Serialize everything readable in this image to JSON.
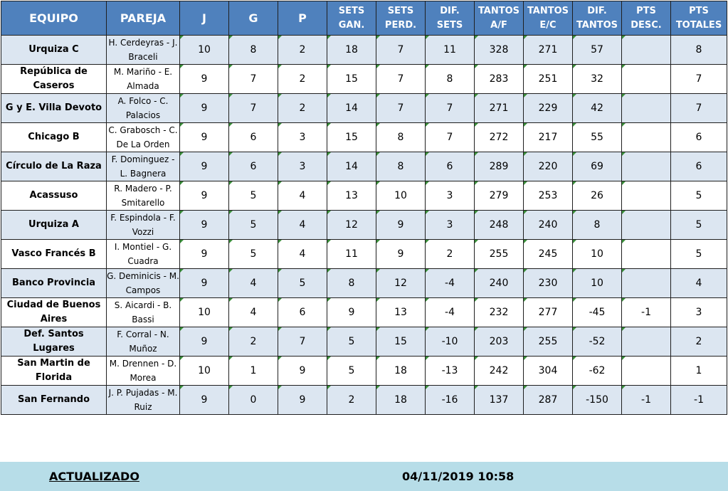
{
  "headers": [
    {
      "key": "equipo",
      "label": "EQUIPO"
    },
    {
      "key": "pareja",
      "label": "PAREJA"
    },
    {
      "key": "j",
      "label": "J"
    },
    {
      "key": "g",
      "label": "G"
    },
    {
      "key": "p",
      "label": "P"
    },
    {
      "key": "sets_gan",
      "label": "SETS GAN."
    },
    {
      "key": "sets_perd",
      "label": "SETS PERD."
    },
    {
      "key": "dif_sets",
      "label": "DIF. SETS"
    },
    {
      "key": "tantos_af",
      "label": "TANTOS A/F"
    },
    {
      "key": "tantos_ec",
      "label": "TANTOS E/C"
    },
    {
      "key": "dif_tantos",
      "label": "DIF. TANTOS"
    },
    {
      "key": "pts_desc",
      "label": "PTS DESC."
    },
    {
      "key": "pts_totales",
      "label": "PTS TOTALES"
    }
  ],
  "rows": [
    {
      "equipo": "Urquiza C",
      "pareja": "H. Cerdeyras - J. Braceli",
      "j": "10",
      "g": "8",
      "p": "2",
      "sets_gan": "18",
      "sets_perd": "7",
      "dif_sets": "11",
      "tantos_af": "328",
      "tantos_ec": "271",
      "dif_tantos": "57",
      "pts_desc": "",
      "pts_totales": "8"
    },
    {
      "equipo": "República de Caseros",
      "pareja": "M. Mariño - E. Almada",
      "j": "9",
      "g": "7",
      "p": "2",
      "sets_gan": "15",
      "sets_perd": "7",
      "dif_sets": "8",
      "tantos_af": "283",
      "tantos_ec": "251",
      "dif_tantos": "32",
      "pts_desc": "",
      "pts_totales": "7"
    },
    {
      "equipo": "G y E. Villa Devoto",
      "pareja": "A. Folco - C. Palacios",
      "j": "9",
      "g": "7",
      "p": "2",
      "sets_gan": "14",
      "sets_perd": "7",
      "dif_sets": "7",
      "tantos_af": "271",
      "tantos_ec": "229",
      "dif_tantos": "42",
      "pts_desc": "",
      "pts_totales": "7"
    },
    {
      "equipo": "Chicago B",
      "pareja": "C. Grabosch - C. De La Orden",
      "j": "9",
      "g": "6",
      "p": "3",
      "sets_gan": "15",
      "sets_perd": "8",
      "dif_sets": "7",
      "tantos_af": "272",
      "tantos_ec": "217",
      "dif_tantos": "55",
      "pts_desc": "",
      "pts_totales": "6"
    },
    {
      "equipo": "Círculo de La Raza",
      "pareja": "F. Dominguez - L. Bagnera",
      "j": "9",
      "g": "6",
      "p": "3",
      "sets_gan": "14",
      "sets_perd": "8",
      "dif_sets": "6",
      "tantos_af": "289",
      "tantos_ec": "220",
      "dif_tantos": "69",
      "pts_desc": "",
      "pts_totales": "6"
    },
    {
      "equipo": "Acassuso",
      "pareja": "R. Madero - P. Smitarello",
      "j": "9",
      "g": "5",
      "p": "4",
      "sets_gan": "13",
      "sets_perd": "10",
      "dif_sets": "3",
      "tantos_af": "279",
      "tantos_ec": "253",
      "dif_tantos": "26",
      "pts_desc": "",
      "pts_totales": "5"
    },
    {
      "equipo": "Urquiza A",
      "pareja": "F. Espindola - F. Vozzi",
      "j": "9",
      "g": "5",
      "p": "4",
      "sets_gan": "12",
      "sets_perd": "9",
      "dif_sets": "3",
      "tantos_af": "248",
      "tantos_ec": "240",
      "dif_tantos": "8",
      "pts_desc": "",
      "pts_totales": "5"
    },
    {
      "equipo": "Vasco Francés B",
      "pareja": "I. Montiel - G. Cuadra",
      "j": "9",
      "g": "5",
      "p": "4",
      "sets_gan": "11",
      "sets_perd": "9",
      "dif_sets": "2",
      "tantos_af": "255",
      "tantos_ec": "245",
      "dif_tantos": "10",
      "pts_desc": "",
      "pts_totales": "5"
    },
    {
      "equipo": "Banco Provincia",
      "pareja": "G. Deminicis - M. Campos",
      "j": "9",
      "g": "4",
      "p": "5",
      "sets_gan": "8",
      "sets_perd": "12",
      "dif_sets": "-4",
      "tantos_af": "240",
      "tantos_ec": "230",
      "dif_tantos": "10",
      "pts_desc": "",
      "pts_totales": "4"
    },
    {
      "equipo": "Ciudad de Buenos Aires",
      "pareja": "S. Aicardi - B. Bassi",
      "j": "10",
      "g": "4",
      "p": "6",
      "sets_gan": "9",
      "sets_perd": "13",
      "dif_sets": "-4",
      "tantos_af": "232",
      "tantos_ec": "277",
      "dif_tantos": "-45",
      "pts_desc": "-1",
      "pts_totales": "3"
    },
    {
      "equipo": "Def. Santos Lugares",
      "pareja": "F. Corral - N. Muñoz",
      "j": "9",
      "g": "2",
      "p": "7",
      "sets_gan": "5",
      "sets_perd": "15",
      "dif_sets": "-10",
      "tantos_af": "203",
      "tantos_ec": "255",
      "dif_tantos": "-52",
      "pts_desc": "",
      "pts_totales": "2"
    },
    {
      "equipo": "San Martin de Florida",
      "pareja": "M. Drennen - D. Morea",
      "j": "10",
      "g": "1",
      "p": "9",
      "sets_gan": "5",
      "sets_perd": "18",
      "dif_sets": "-13",
      "tantos_af": "242",
      "tantos_ec": "304",
      "dif_tantos": "-62",
      "pts_desc": "",
      "pts_totales": "1"
    },
    {
      "equipo": "San Fernando",
      "pareja": "J. P. Pujadas - M. Ruiz",
      "j": "9",
      "g": "0",
      "p": "9",
      "sets_gan": "2",
      "sets_perd": "18",
      "dif_sets": "-16",
      "tantos_af": "137",
      "tantos_ec": "287",
      "dif_tantos": "-150",
      "pts_desc": "-1",
      "pts_totales": "-1"
    }
  ],
  "footer": {
    "label": "ACTUALIZADO",
    "timestamp": "04/11/2019 10:58"
  },
  "colors": {
    "header_bg": "#4f81bd",
    "band_row": "#dce6f1",
    "footer_bg": "#b7dde8",
    "cell_marker": "#3a8f3a"
  }
}
